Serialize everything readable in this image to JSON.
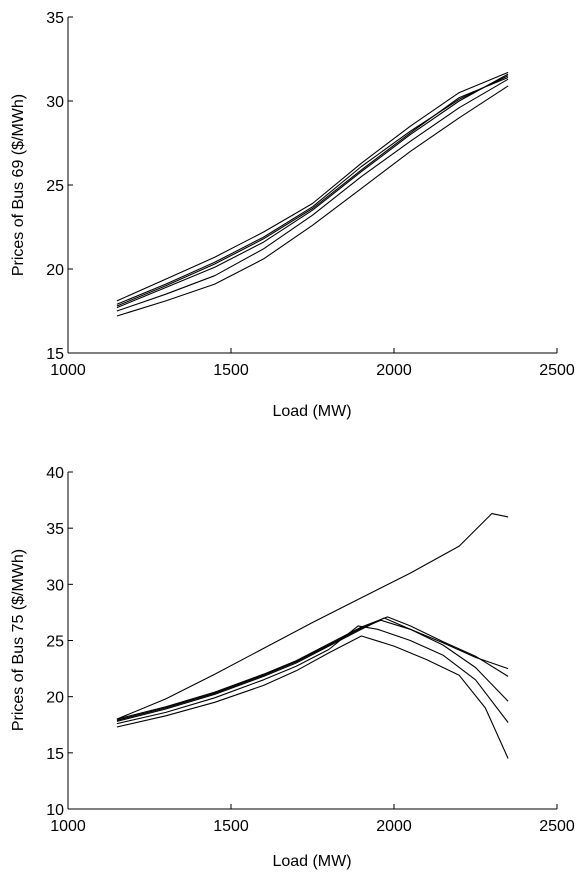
{
  "chart_data": [
    {
      "type": "line",
      "title": "",
      "xlabel": "Load (MW)",
      "ylabel": "Prices of Bus 69 ($/MWh)",
      "xlim": [
        1000,
        2500
      ],
      "ylim": [
        15,
        35
      ],
      "xticks": [
        1000,
        1500,
        2000,
        2500
      ],
      "yticks": [
        15,
        20,
        25,
        30,
        35
      ],
      "x_tick_labels": [
        "1000",
        "1500",
        "2000",
        "2500"
      ],
      "y_tick_labels": [
        "15",
        "20",
        "25",
        "30",
        "35"
      ],
      "grid": false,
      "legend": "none",
      "series": [
        {
          "x": [
            1150,
            1300,
            1450,
            1600,
            1750,
            1900,
            2050,
            2200,
            2350
          ],
          "values": [
            17.2,
            18.1,
            19.1,
            20.6,
            22.6,
            24.8,
            27.0,
            29.0,
            30.9
          ]
        },
        {
          "x": [
            1150,
            1300,
            1450,
            1600,
            1750,
            1900,
            2050,
            2200,
            2350
          ],
          "values": [
            17.5,
            18.5,
            19.6,
            21.2,
            23.2,
            25.5,
            27.6,
            29.6,
            31.3
          ]
        },
        {
          "x": [
            1150,
            1300,
            1450,
            1600,
            1750,
            1900,
            2050,
            2200,
            2350
          ],
          "values": [
            17.7,
            18.9,
            20.1,
            21.6,
            23.5,
            25.8,
            28.0,
            30.0,
            31.6
          ]
        },
        {
          "x": [
            1150,
            1300,
            1450,
            1600,
            1750,
            1900,
            2050,
            2200,
            2350
          ],
          "values": [
            17.9,
            19.1,
            20.4,
            21.9,
            23.7,
            26.1,
            28.2,
            30.1,
            31.5
          ]
        },
        {
          "x": [
            1150,
            1300,
            1450,
            1600,
            1750,
            1900,
            2050,
            2200,
            2350
          ],
          "values": [
            18.1,
            19.4,
            20.7,
            22.2,
            23.9,
            26.3,
            28.5,
            30.5,
            31.7
          ]
        },
        {
          "x": [
            1150,
            1300,
            1450,
            1600,
            1750,
            1900,
            2050,
            2200,
            2350
          ],
          "values": [
            17.8,
            19.0,
            20.3,
            21.8,
            23.6,
            25.9,
            28.1,
            30.2,
            31.4
          ]
        }
      ]
    },
    {
      "type": "line",
      "title": "",
      "xlabel": "Load (MW)",
      "ylabel": "Prices of Bus 75 ($/MWh)",
      "xlim": [
        1000,
        2500
      ],
      "ylim": [
        10,
        40
      ],
      "xticks": [
        1000,
        1500,
        2000,
        2500
      ],
      "yticks": [
        10,
        15,
        20,
        25,
        30,
        35,
        40
      ],
      "x_tick_labels": [
        "1000",
        "1500",
        "2000",
        "2500"
      ],
      "y_tick_labels": [
        "10",
        "15",
        "20",
        "25",
        "30",
        "35",
        "40"
      ],
      "grid": false,
      "legend": "none",
      "series": [
        {
          "x": [
            1150,
            1300,
            1450,
            1600,
            1750,
            1900,
            2050,
            2200,
            2300,
            2350
          ],
          "values": [
            18.0,
            19.8,
            22.0,
            24.3,
            26.6,
            28.8,
            31.0,
            33.4,
            36.3,
            36.0
          ]
        },
        {
          "x": [
            1150,
            1300,
            1450,
            1600,
            1700,
            1800,
            1900,
            1970,
            2050,
            2150,
            2250,
            2350
          ],
          "values": [
            17.8,
            18.9,
            20.2,
            21.8,
            23.0,
            24.5,
            26.0,
            27.0,
            26.0,
            24.8,
            23.5,
            22.5
          ]
        },
        {
          "x": [
            1150,
            1300,
            1450,
            1600,
            1700,
            1800,
            1900,
            1980,
            2050,
            2150,
            2250,
            2350
          ],
          "values": [
            18.0,
            19.1,
            20.4,
            22.0,
            23.2,
            24.7,
            26.2,
            27.1,
            26.3,
            24.9,
            23.6,
            21.8
          ]
        },
        {
          "x": [
            1150,
            1300,
            1450,
            1600,
            1700,
            1800,
            1900,
            1960,
            2050,
            2150,
            2250,
            2350
          ],
          "values": [
            17.9,
            19.0,
            20.3,
            21.9,
            23.1,
            24.6,
            26.1,
            26.8,
            26.0,
            24.6,
            22.6,
            19.6
          ]
        },
        {
          "x": [
            1150,
            1300,
            1450,
            1600,
            1700,
            1800,
            1890,
            1950,
            2050,
            2150,
            2250,
            2350
          ],
          "values": [
            17.6,
            18.6,
            19.9,
            21.5,
            22.7,
            24.2,
            26.3,
            26.0,
            25.0,
            23.7,
            21.5,
            17.7
          ]
        },
        {
          "x": [
            1150,
            1300,
            1450,
            1600,
            1700,
            1800,
            1900,
            2000,
            2100,
            2200,
            2280,
            2350
          ],
          "values": [
            17.3,
            18.3,
            19.5,
            21.0,
            22.3,
            23.9,
            25.4,
            24.5,
            23.3,
            21.9,
            19.0,
            14.5
          ]
        }
      ]
    }
  ]
}
